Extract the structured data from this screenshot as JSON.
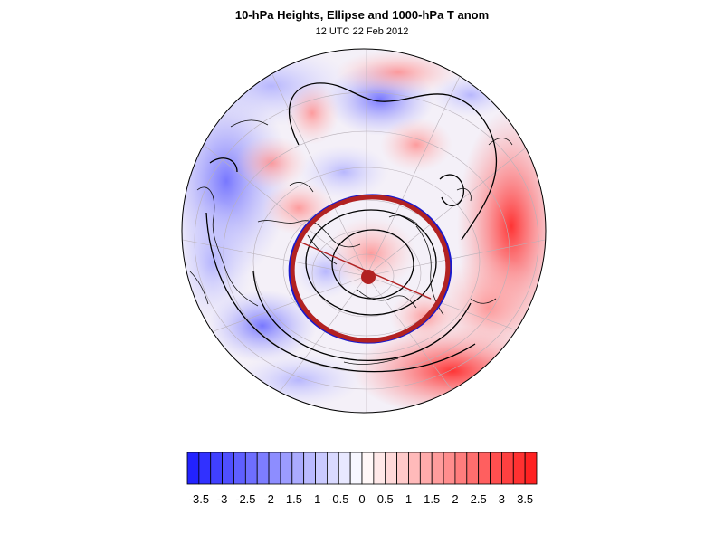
{
  "header": {
    "title": "10-hPa Heights, Ellipse and 1000-hPa T anom",
    "subtitle": "12 UTC 22 Feb 2012"
  },
  "colors": {
    "negative_max": "#1a1aff",
    "neutral": "#ffffff",
    "positive_max": "#ff1a1a",
    "ellipse_red": "#b22222",
    "ellipse_blue": "#1a1acc",
    "contour": "#000000"
  },
  "icons": [
    "north-pole-marker",
    "ellipse-center-marker"
  ],
  "colorbar": {
    "labels": [
      "-3.5",
      "-3",
      "-2.5",
      "-2",
      "-1.5",
      "-1",
      "-0.5",
      "0",
      "0.5",
      "1",
      "1.5",
      "2",
      "2.5",
      "3",
      "3.5"
    ],
    "levels": [
      -3.75,
      -3.5,
      -3.25,
      -3,
      -2.75,
      -2.5,
      -2.25,
      -2,
      -1.75,
      -1.5,
      -1.25,
      -1,
      -0.75,
      -0.5,
      -0.25,
      0,
      0.25,
      0.5,
      0.75,
      1,
      1.25,
      1.5,
      1.75,
      2,
      2.25,
      2.5,
      2.75,
      3,
      3.25,
      3.5,
      3.75
    ]
  },
  "map": {
    "projection": "orthographic-north-polar",
    "field": "1000-hPa temperature anomaly",
    "contours": "10-hPa geopotential height",
    "overlay": "vortex moment ellipse with major axis line"
  }
}
